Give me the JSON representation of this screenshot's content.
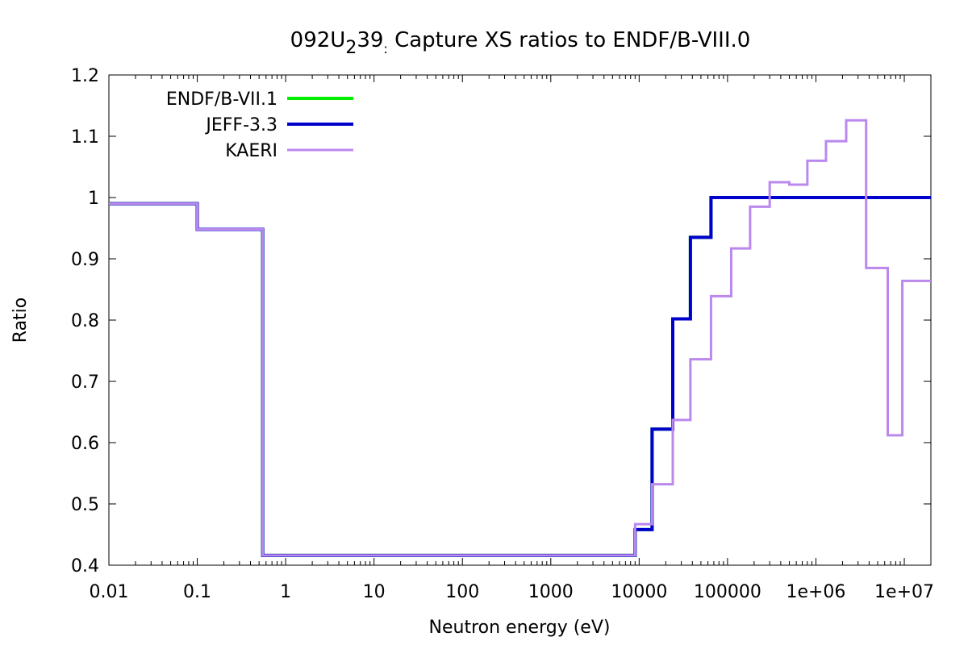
{
  "chart_data": {
    "type": "line",
    "title": "092U239: Capture XS ratios to ENDF/B-VIII.0",
    "title_main": "092U",
    "title_sub": "2",
    "title_rest": "39",
    "title_sub2": ":",
    "title_tail": " Capture XS ratios to ENDF/B-VIII.0",
    "xlabel": "Neutron energy (eV)",
    "ylabel": "Ratio",
    "xscale": "log",
    "xlim": [
      0.01,
      20000000
    ],
    "ylim": [
      0.4,
      1.2
    ],
    "legend_position": "top-left",
    "x_ticks": [
      {
        "value": 0.01,
        "label": "0.01"
      },
      {
        "value": 0.1,
        "label": "0.1"
      },
      {
        "value": 1,
        "label": "1"
      },
      {
        "value": 10,
        "label": "10"
      },
      {
        "value": 100,
        "label": "100"
      },
      {
        "value": 1000,
        "label": "1000"
      },
      {
        "value": 10000,
        "label": "10000"
      },
      {
        "value": 100000,
        "label": "100000"
      },
      {
        "value": 1000000,
        "label": "1e+06"
      },
      {
        "value": 10000000,
        "label": "1e+07"
      }
    ],
    "y_ticks": [
      {
        "value": 0.4,
        "label": "0.4"
      },
      {
        "value": 0.5,
        "label": "0.5"
      },
      {
        "value": 0.6,
        "label": "0.6"
      },
      {
        "value": 0.7,
        "label": "0.7"
      },
      {
        "value": 0.8,
        "label": "0.8"
      },
      {
        "value": 0.9,
        "label": "0.9"
      },
      {
        "value": 1.0,
        "label": "1"
      },
      {
        "value": 1.1,
        "label": "1.1"
      },
      {
        "value": 1.2,
        "label": "1.2"
      }
    ],
    "series": [
      {
        "name": "ENDF/B-VII.1",
        "color": "#00ee00",
        "step": true,
        "points": [
          [
            0.01,
            0.99
          ],
          [
            0.1,
            0.948
          ],
          [
            0.55,
            0.416
          ],
          [
            9000,
            0.458
          ],
          [
            14000,
            0.622
          ],
          [
            24000,
            0.802
          ],
          [
            38000,
            0.935
          ],
          [
            65000,
            1.0
          ],
          [
            20000000,
            1.0
          ]
        ]
      },
      {
        "name": "JEFF-3.3",
        "color": "#0000cc",
        "step": true,
        "points": [
          [
            0.01,
            0.99
          ],
          [
            0.1,
            0.948
          ],
          [
            0.55,
            0.416
          ],
          [
            9000,
            0.458
          ],
          [
            14000,
            0.622
          ],
          [
            24000,
            0.802
          ],
          [
            38000,
            0.935
          ],
          [
            65000,
            1.0
          ],
          [
            20000000,
            1.0
          ]
        ]
      },
      {
        "name": "KAERI",
        "color": "#bb88ee",
        "step": true,
        "points": [
          [
            0.01,
            0.99
          ],
          [
            0.1,
            0.948
          ],
          [
            0.55,
            0.416
          ],
          [
            9000,
            0.467
          ],
          [
            14000,
            0.532
          ],
          [
            24000,
            0.637
          ],
          [
            38000,
            0.736
          ],
          [
            65000,
            0.839
          ],
          [
            110000,
            0.917
          ],
          [
            180000,
            0.985
          ],
          [
            300000,
            1.025
          ],
          [
            500000,
            1.021
          ],
          [
            800000,
            1.06
          ],
          [
            1300000,
            1.092
          ],
          [
            2200000,
            1.126
          ],
          [
            3700000,
            0.885
          ],
          [
            6500000,
            0.612
          ],
          [
            9500000,
            0.864
          ],
          [
            20000000,
            0.864
          ]
        ]
      }
    ]
  }
}
